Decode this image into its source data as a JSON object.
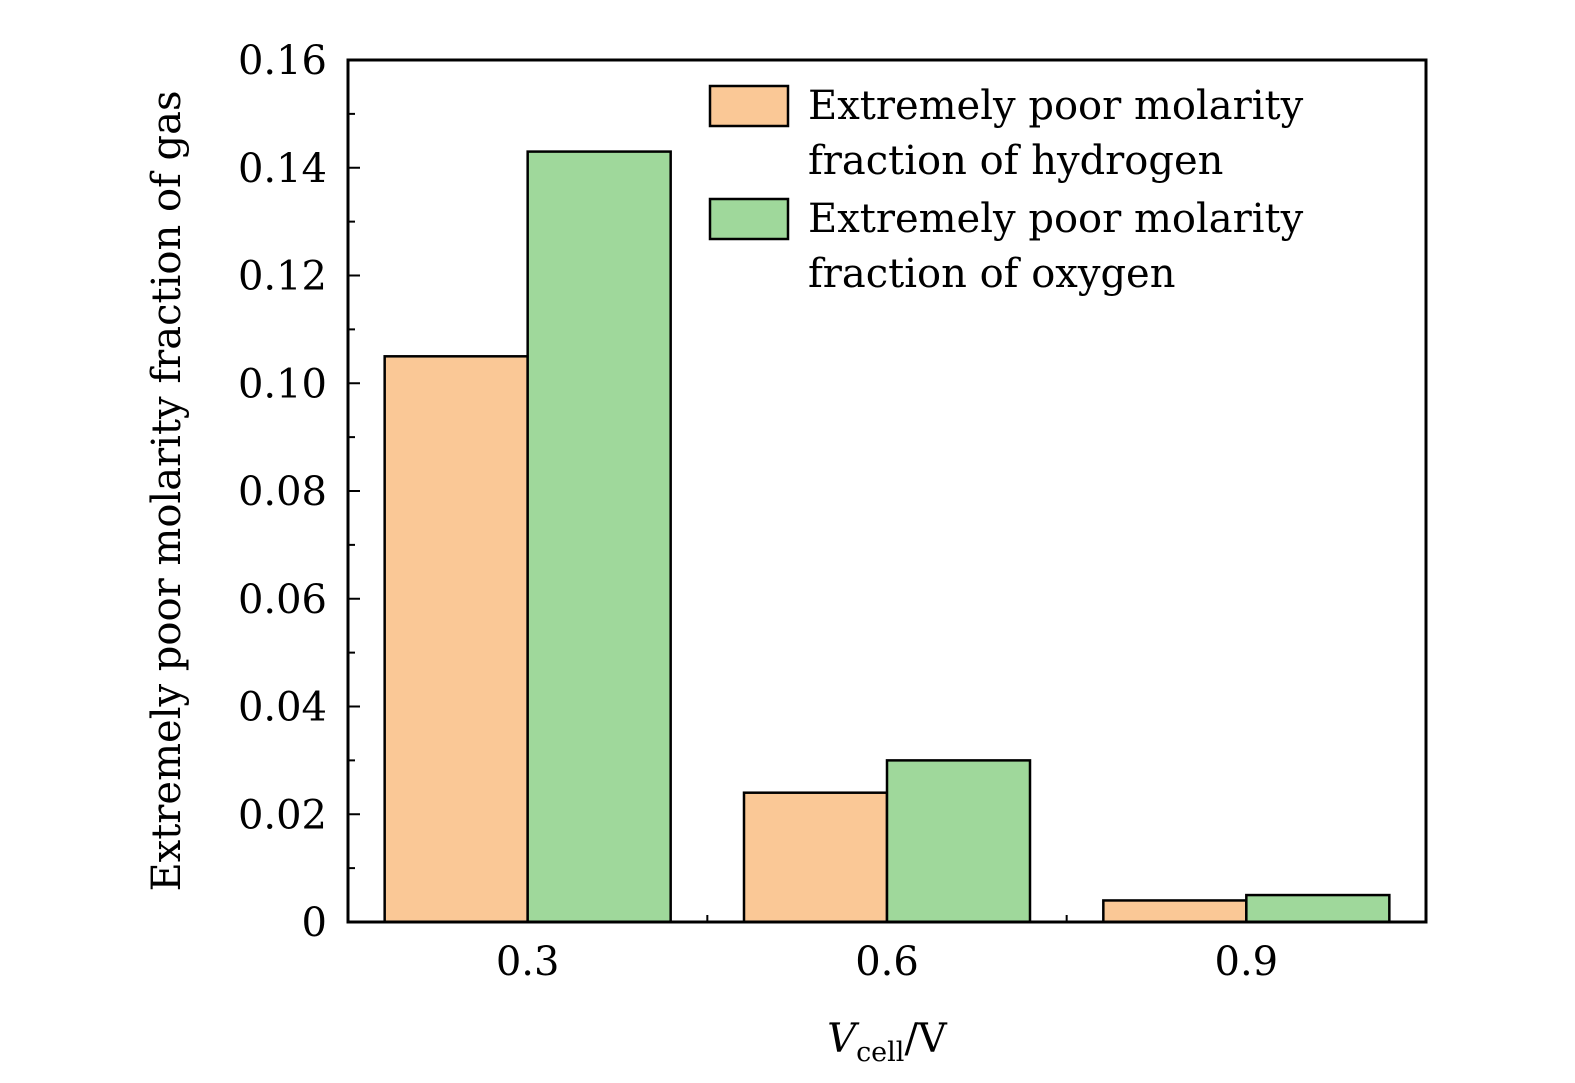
{
  "chart_data": {
    "type": "bar",
    "categories": [
      "0.3",
      "0.6",
      "0.9"
    ],
    "series": [
      {
        "name": "Extremely poor molarity fraction of hydrogen",
        "legend_lines": [
          "Extremely poor molarity",
          "fraction of hydrogen"
        ],
        "color": "#FAC896",
        "values": [
          0.105,
          0.024,
          0.004
        ]
      },
      {
        "name": "Extremely poor molarity fraction of oxygen",
        "legend_lines": [
          "Extremely poor molarity",
          "fraction of oxygen"
        ],
        "color": "#9FD89B",
        "values": [
          0.143,
          0.03,
          0.005
        ]
      }
    ],
    "ylim": [
      0,
      0.16
    ],
    "yticks": [
      "0",
      "0.02",
      "0.04",
      "0.06",
      "0.08",
      "0.10",
      "0.12",
      "0.14",
      "0.16"
    ],
    "ylabel": "Extremely poor molarity fraction of gas",
    "xlabel": {
      "main": "V",
      "subscript": "cell",
      "suffix": "/V"
    },
    "legend_position": "top-right",
    "grid": false
  }
}
